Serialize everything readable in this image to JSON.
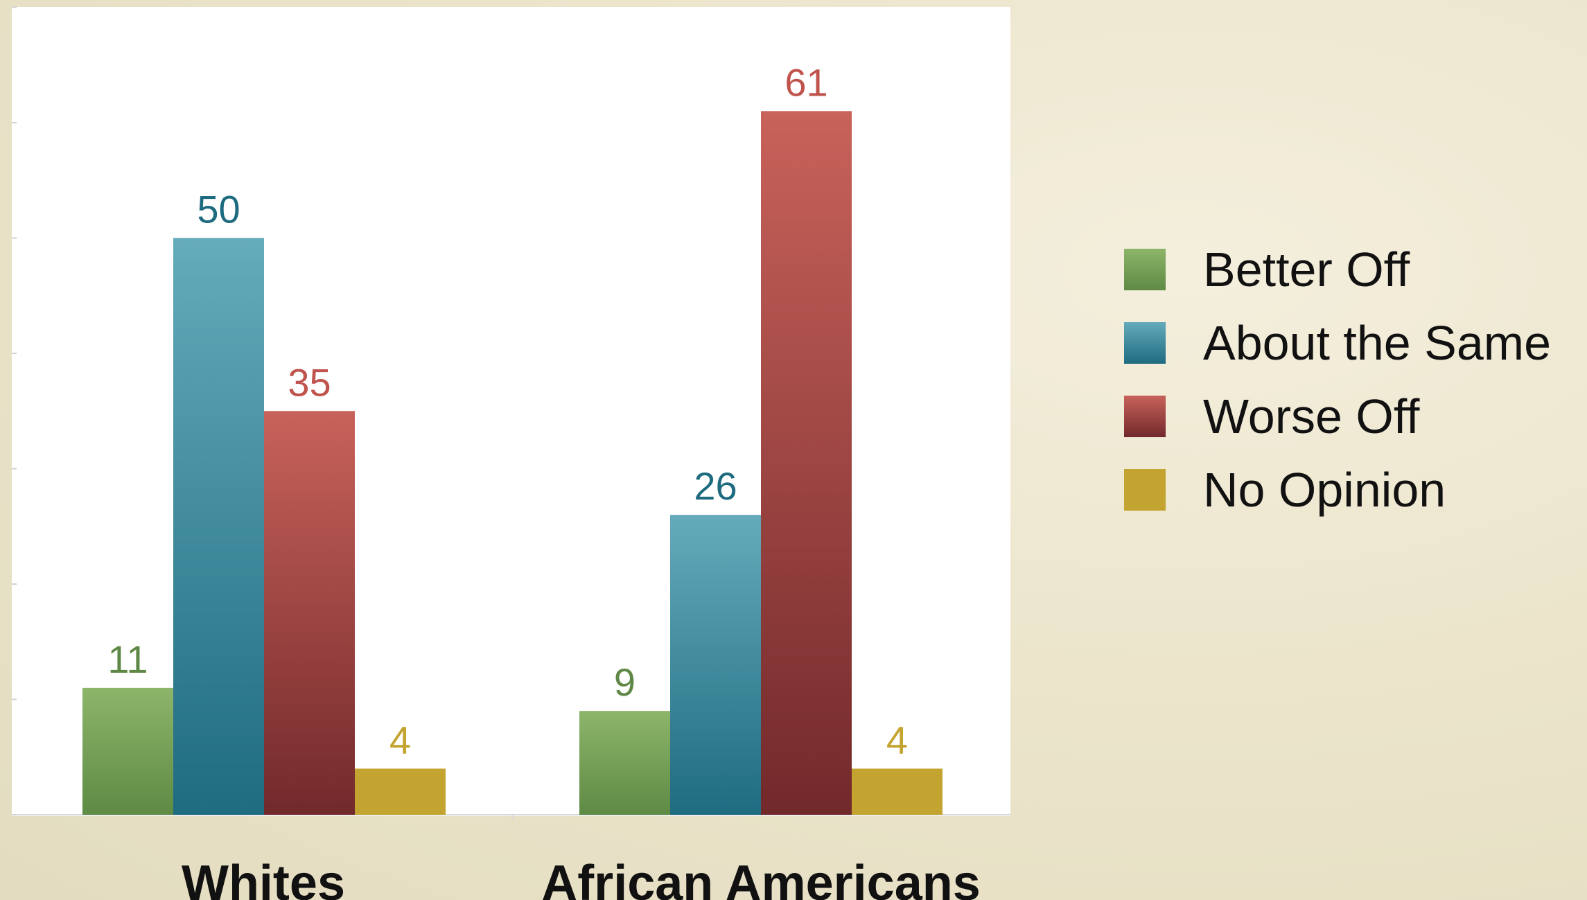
{
  "chart_data": {
    "type": "bar",
    "categories": [
      "Whites",
      "African Americans"
    ],
    "series": [
      {
        "name": "Better Off",
        "values": [
          11,
          9
        ]
      },
      {
        "name": "About the Same",
        "values": [
          50,
          26
        ]
      },
      {
        "name": "Worse Off",
        "values": [
          35,
          61
        ]
      },
      {
        "name": "No Opinion",
        "values": [
          4,
          4
        ]
      }
    ],
    "colors": {
      "Better Off": {
        "top": "#8db56a",
        "bottom": "#5e8a44",
        "label": "#5f8846"
      },
      "About the Same": {
        "top": "#64abbb",
        "bottom": "#1f6b80",
        "label": "#1e6b80"
      },
      "Worse Off": {
        "top": "#c8625a",
        "bottom": "#72292b",
        "label": "#c0544d"
      },
      "No Opinion": {
        "top": "#c4a431",
        "bottom": "#c4a431",
        "label": "#c4a431"
      }
    },
    "ylim": [
      0,
      70
    ],
    "grid": false,
    "legend_position": "right",
    "title": "",
    "xlabel": "",
    "ylabel": ""
  }
}
